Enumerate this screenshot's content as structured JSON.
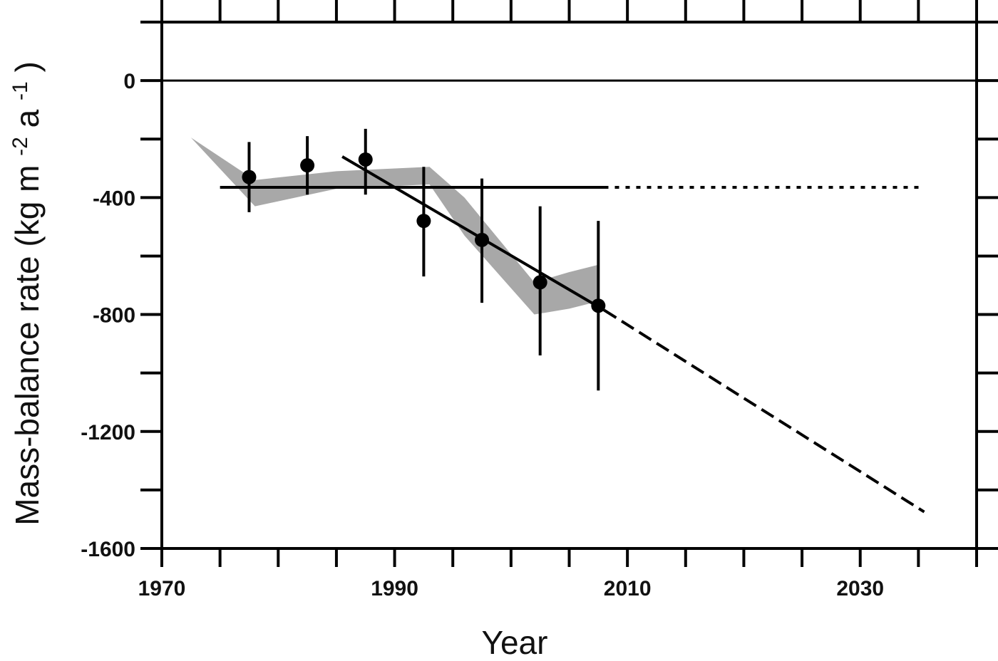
{
  "chart_data": {
    "type": "line",
    "title": "",
    "xlabel": "Year",
    "ylabel_parts": {
      "main": "Mass-balance rate (kg m",
      "exp1": "-2",
      "mid": " a",
      "exp2": "-1",
      "close": ")"
    },
    "xlim": [
      1970,
      2040
    ],
    "ylim": [
      -1600,
      200
    ],
    "x_ticks": [
      1970,
      1990,
      2010,
      2030
    ],
    "y_ticks": [
      0,
      -400,
      -800,
      -1200,
      -1600
    ],
    "x_tick_labels": [
      "1970",
      "1990",
      "2010",
      "2030"
    ],
    "y_tick_labels": [
      "0",
      "-400",
      "-800",
      "-1200",
      "-1600"
    ],
    "zero_line": 0,
    "grid": false,
    "legend": "none",
    "colors": {
      "band": "#a8a8a8",
      "line": "#000000",
      "points": "#000000"
    },
    "series": [
      {
        "kind": "band",
        "x": [
          1970,
          1972.5,
          1978,
          1985,
          1993,
          1996,
          2002,
          2005,
          2007.5
        ],
        "upper": [
          -240,
          -195,
          -340,
          -310,
          -295,
          -400,
          -690,
          -655,
          -630
        ],
        "lower": [
          -240,
          -195,
          -430,
          -370,
          -355,
          -530,
          -800,
          -780,
          -755
        ]
      },
      {
        "kind": "points",
        "x": [
          1977.5,
          1982.5,
          1987.5,
          1992.5,
          1997.5,
          2002.5,
          2007.5
        ],
        "y": [
          -330,
          -290,
          -270,
          -480,
          -545,
          -690,
          -770
        ],
        "err_low": [
          -450,
          -390,
          -390,
          -670,
          -760,
          -940,
          -1060
        ],
        "err_high": [
          -210,
          -190,
          -165,
          -295,
          -335,
          -430,
          -480
        ]
      },
      {
        "kind": "line",
        "style": "solid",
        "x": [
          1975,
          2008
        ],
        "y": [
          -365,
          -365
        ]
      },
      {
        "kind": "line",
        "style": "dotted",
        "x": [
          2008,
          2035.5
        ],
        "y": [
          -365,
          -365
        ]
      },
      {
        "kind": "line",
        "style": "solid",
        "x": [
          1985.5,
          2008
        ],
        "y": [
          -260,
          -785
        ]
      },
      {
        "kind": "line",
        "style": "dashed",
        "x": [
          2008,
          2035.5
        ],
        "y": [
          -785,
          -1475
        ]
      }
    ]
  }
}
